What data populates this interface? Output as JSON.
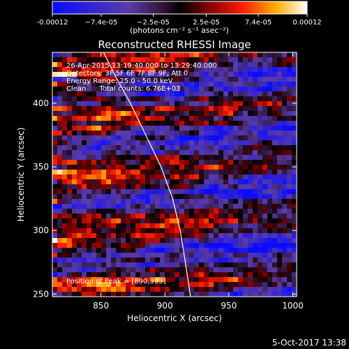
{
  "chart_data": {
    "type": "heatmap",
    "title": "Reconstructed RHESSI Image",
    "xlabel": "Heliocentric X (arcsec)",
    "ylabel": "Heliocentric Y (arcsec)",
    "xlim": [
      812,
      1003
    ],
    "ylim": [
      248,
      440
    ],
    "x_ticks": [
      850,
      900,
      950,
      1000
    ],
    "y_ticks": [
      250,
      300,
      350,
      400
    ],
    "colorbar": {
      "range": [
        -0.00012,
        0.00012
      ],
      "tick_values": [
        -0.00012,
        -7.4e-05,
        -2.5e-05,
        2.5e-05,
        7.4e-05,
        0.00012
      ],
      "tick_labels": [
        "-0.00012",
        "−7.4e-05",
        "−2.5e-05",
        "2.5e-05",
        "7.4e-05",
        "0.00012"
      ],
      "unit_label": "(photons cm⁻² s⁻¹ asec⁻²)"
    },
    "annotations": [
      "26-Apr-2015 13:19:40.000 to 13:29:40.000",
      "Detectors: 3F 5F 6F 7F 8F 9F, Att 0",
      "Energy Range: 25.0 - 50.0 keV",
      "Clean      Total counts: 6.76E+03"
    ],
    "peak_label": "Position of Peak = [890,393]",
    "limb_curve": [
      [
        852,
        440
      ],
      [
        862,
        420
      ],
      [
        873,
        400
      ],
      [
        885,
        375
      ],
      [
        897,
        350
      ],
      [
        906,
        325
      ],
      [
        912,
        300
      ],
      [
        916,
        275
      ],
      [
        920,
        248
      ]
    ],
    "grid": false
  },
  "footer": {
    "date": "5-Oct-2017 13:38"
  }
}
